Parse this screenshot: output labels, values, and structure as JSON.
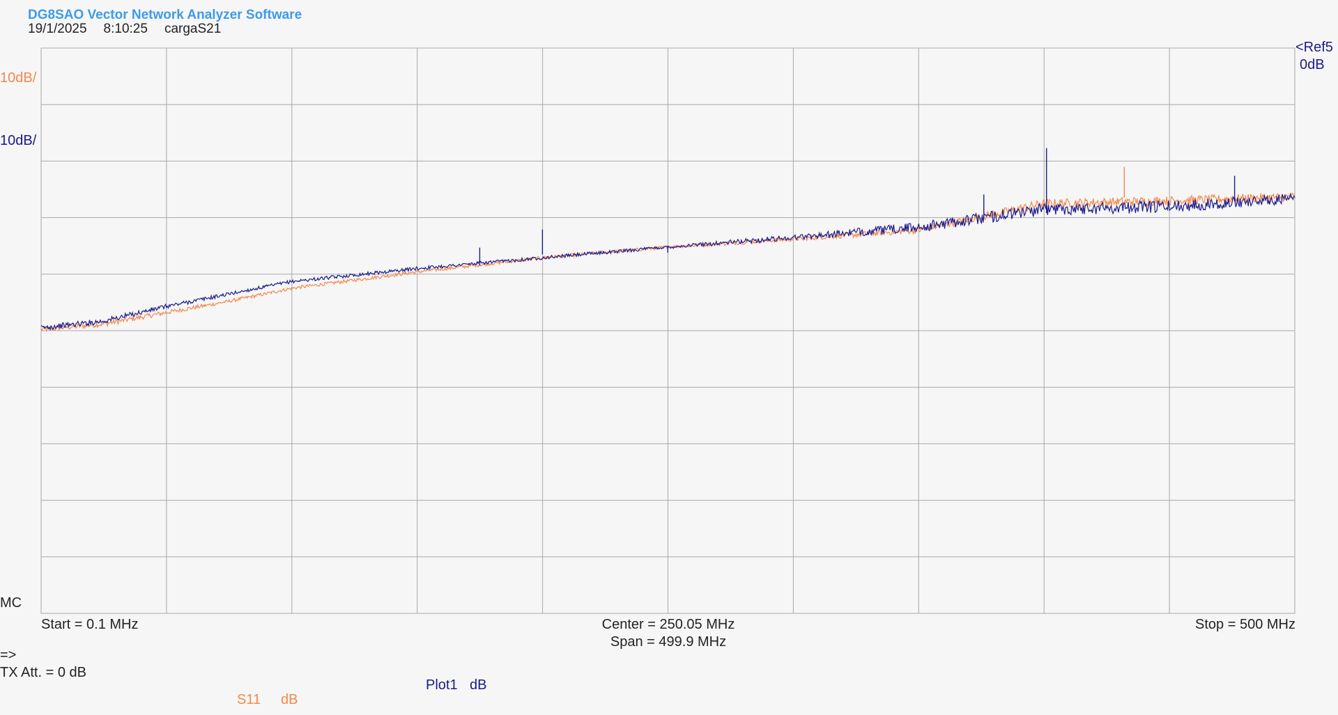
{
  "header": {
    "app_title": "DG8SAO Vector Network Analyzer Software",
    "date": "19/1/2025",
    "time": "8:10:25",
    "file_name": "cargaS21"
  },
  "scale": {
    "s11_div": "10dB/",
    "plot1_div": "10dB/",
    "ref_line1": "<Ref5",
    "ref_line2": "0dB",
    "marker_label": "MC"
  },
  "axis": {
    "start": "Start = 0.1 MHz",
    "center": "Center = 250.05 MHz",
    "span": "Span = 499.9 MHz",
    "stop": "Stop = 500 MHz"
  },
  "status": {
    "prompt": "=>",
    "tx_att": "TX Att.  = 0 dB"
  },
  "legend": {
    "s11_name": "S11",
    "s11_unit": "dB",
    "plot1_name": "Plot1",
    "plot1_unit": "dB"
  },
  "colors": {
    "s11": "#f4884a",
    "plot1": "#1a1a8c",
    "grid": "#a8a8a8",
    "background": "#f6f6f6"
  },
  "chart_data": {
    "type": "line",
    "title": "",
    "xlabel": "",
    "ylabel": "",
    "xlim": [
      0.1,
      500
    ],
    "ylim": [
      -95,
      5
    ],
    "x_divisions": 10,
    "y_divisions": 10,
    "y_per_div": 10,
    "grid": true,
    "series": [
      {
        "name": "S11",
        "color": "#f4884a",
        "points": [
          [
            0.1,
            -44.8
          ],
          [
            25,
            -43.8
          ],
          [
            50,
            -41.8
          ],
          [
            75,
            -39.8
          ],
          [
            100,
            -37.5
          ],
          [
            150,
            -34.6
          ],
          [
            200,
            -32.1
          ],
          [
            250,
            -30.2
          ],
          [
            300,
            -28.8
          ],
          [
            350,
            -27.2
          ],
          [
            400,
            -22.5
          ],
          [
            450,
            -22.0
          ],
          [
            500,
            -21.3
          ]
        ],
        "noise": [
          0.5,
          0.5,
          0.4,
          0.3,
          0.3,
          0.3,
          0.3,
          0.3,
          0.4,
          0.6,
          0.8,
          0.8,
          0.8
        ],
        "spikes": [
          [
            432,
            -16.0,
            -21.5
          ]
        ]
      },
      {
        "name": "Plot1",
        "color": "#1a1a8c",
        "points": [
          [
            0.1,
            -44.5
          ],
          [
            25,
            -43.3
          ],
          [
            50,
            -40.7
          ],
          [
            75,
            -38.5
          ],
          [
            100,
            -36.3
          ],
          [
            150,
            -34.0
          ],
          [
            200,
            -32.1
          ],
          [
            250,
            -30.2
          ],
          [
            300,
            -28.5
          ],
          [
            350,
            -26.7
          ],
          [
            400,
            -23.5
          ],
          [
            450,
            -23.0
          ],
          [
            500,
            -21.6
          ]
        ],
        "noise": [
          0.5,
          0.5,
          0.4,
          0.3,
          0.3,
          0.3,
          0.3,
          0.3,
          0.5,
          0.9,
          1.1,
          1.1,
          0.9
        ],
        "spikes": [
          [
            175,
            -30.3,
            -33.5
          ],
          [
            200,
            -27.1,
            -31.5
          ],
          [
            250,
            -30.0,
            -31.2
          ],
          [
            376,
            -20.9,
            -24.8
          ],
          [
            401,
            -12.7,
            -24.2
          ],
          [
            476,
            -17.6,
            -22.1
          ]
        ]
      }
    ]
  }
}
